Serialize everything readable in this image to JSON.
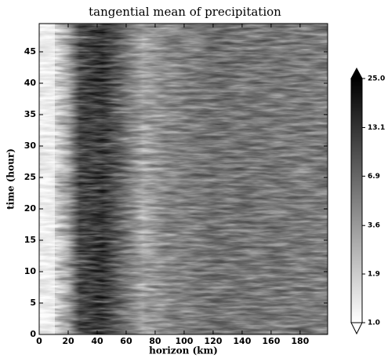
{
  "chart_data": {
    "type": "heatmap",
    "title": "tangential mean of precipitation",
    "x_label": "horizon (km)",
    "y_label": "time (hour)",
    "xlim": [
      0,
      199
    ],
    "xticks": [
      0,
      20,
      40,
      60,
      80,
      100,
      120,
      140,
      160,
      180
    ],
    "ylim": [
      0,
      49.5
    ],
    "yticks": [
      0,
      5,
      10,
      15,
      20,
      25,
      30,
      35,
      40,
      45
    ],
    "colorbar": {
      "lim": [
        1.0,
        25.0
      ],
      "log": true,
      "extend": "both",
      "ticks": [
        {
          "value": 25.0,
          "label": "25.0"
        },
        13.1,
        6.9,
        3.6,
        1.9,
        {
          "value": 1.0,
          "label": "1.0"
        }
      ]
    }
  }
}
